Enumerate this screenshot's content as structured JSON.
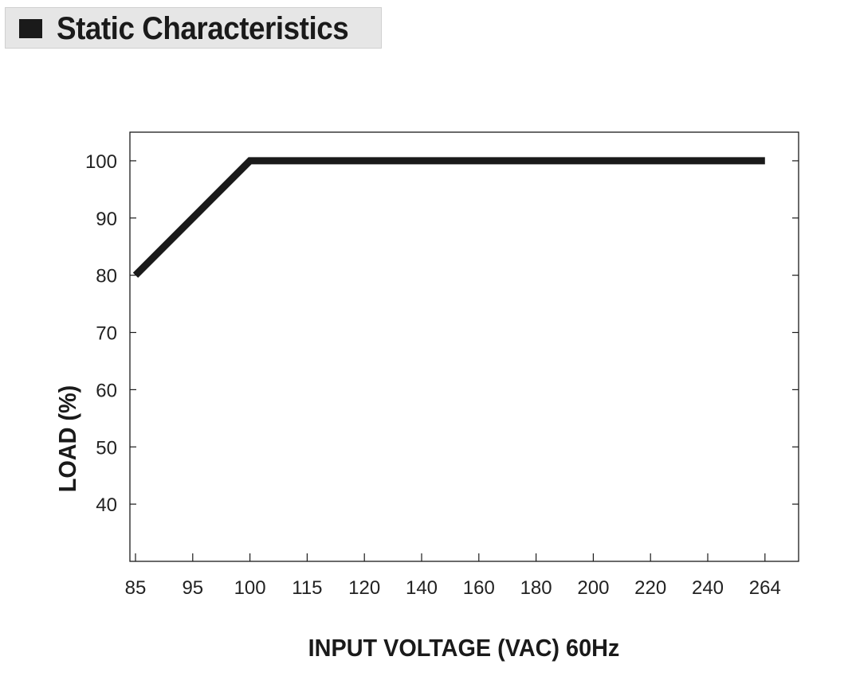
{
  "header": {
    "title": "Static Characteristics",
    "icon": "square-bullet-icon"
  },
  "chart_data": {
    "type": "line",
    "title": "",
    "xlabel": "INPUT VOLTAGE (VAC) 60Hz",
    "ylabel": "LOAD (%)",
    "x_categories": [
      "85",
      "95",
      "100",
      "115",
      "120",
      "140",
      "160",
      "180",
      "200",
      "220",
      "240",
      "264"
    ],
    "y_ticks": [
      40,
      50,
      60,
      70,
      80,
      90,
      100
    ],
    "ylim": [
      30,
      105
    ],
    "grid": false,
    "series": [
      {
        "points": [
          {
            "x": "85",
            "y": 80
          },
          {
            "x": "100",
            "y": 100
          },
          {
            "x": "264",
            "y": 100
          }
        ]
      }
    ],
    "line_color": "#1a1a1a"
  }
}
